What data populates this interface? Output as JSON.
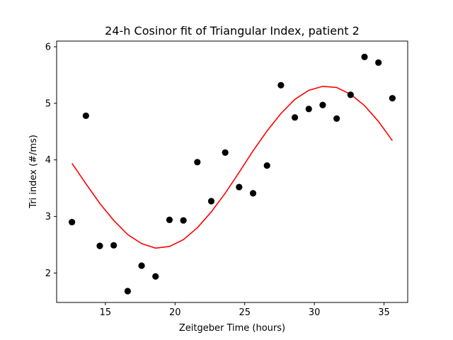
{
  "chart_data": {
    "type": "scatter",
    "title": "24-h Cosinor fit of Triangular Index, patient 2",
    "xlabel": "Zeitgeber Time (hours)",
    "ylabel": "Tri index (#/ms)",
    "xlim": [
      11.5,
      36.7
    ],
    "ylim": [
      1.48,
      6.1
    ],
    "xticks": [
      15,
      20,
      25,
      30,
      35
    ],
    "yticks": [
      2,
      3,
      4,
      5,
      6
    ],
    "grid": false,
    "colors": {
      "points": "#000000",
      "fit": "#ff0000"
    },
    "series": [
      {
        "kind": "scatter",
        "x": [
          12.6,
          13.6,
          14.6,
          15.6,
          16.6,
          17.6,
          18.6,
          19.6,
          20.6,
          21.6,
          22.6,
          23.6,
          24.6,
          25.6,
          26.6,
          27.6,
          28.6,
          29.6,
          30.6,
          31.6,
          32.6,
          33.6,
          34.6,
          35.6
        ],
        "y": [
          2.9,
          4.78,
          2.48,
          2.49,
          1.68,
          2.13,
          1.94,
          2.94,
          2.93,
          3.96,
          3.27,
          4.13,
          3.52,
          3.41,
          3.9,
          5.32,
          4.75,
          4.9,
          4.97,
          4.73,
          5.15,
          5.82,
          5.72,
          5.09
        ]
      },
      {
        "kind": "line",
        "x": [
          12.6,
          13.6,
          14.6,
          15.6,
          16.6,
          17.6,
          18.6,
          19.6,
          20.6,
          21.6,
          22.6,
          23.6,
          24.6,
          25.6,
          26.6,
          27.6,
          28.6,
          29.6,
          30.6,
          31.6,
          32.6,
          33.6,
          34.6,
          35.6
        ],
        "y": [
          3.94,
          3.58,
          3.23,
          2.93,
          2.68,
          2.52,
          2.44,
          2.47,
          2.59,
          2.8,
          3.08,
          3.41,
          3.78,
          4.16,
          4.51,
          4.82,
          5.07,
          5.23,
          5.3,
          5.28,
          5.16,
          4.96,
          4.68,
          4.34
        ]
      }
    ]
  }
}
